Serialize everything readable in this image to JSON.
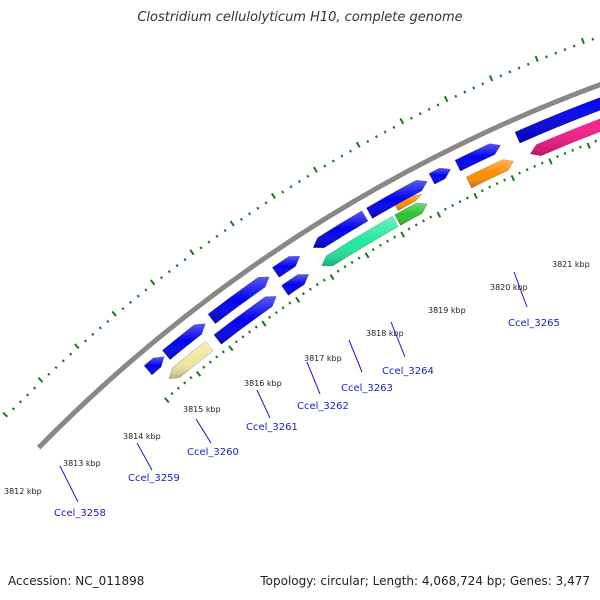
{
  "title": "Clostridium cellulolyticum H10, complete genome",
  "footer": {
    "accession": "Accession: NC_011898",
    "summary": "Topology: circular; Length: 4,068,724 bp; Genes: 3,477"
  },
  "colors": {
    "backbone": "#888888",
    "forward_gene": "#0000ee",
    "tick": "#1a7a1a",
    "label": "#1a1ac8"
  },
  "kbp_labels": [
    "3812 kbp",
    "3813 kbp",
    "3814 kbp",
    "3815 kbp",
    "3816 kbp",
    "3817 kbp",
    "3818 kbp",
    "3819 kbp",
    "3820 kbp",
    "3821 kbp"
  ],
  "highlighted_genes": [
    {
      "name": "Ccel_3258",
      "color": "#f0e6a0"
    },
    {
      "name": "Ccel_3259",
      "color": "#0000ee"
    },
    {
      "name": "Ccel_3260",
      "color": "#0000ee"
    },
    {
      "name": "Ccel_3261",
      "color": "#20e8a0"
    },
    {
      "name": "Ccel_3262",
      "color": "#30c030"
    },
    {
      "name": "Ccel_3263",
      "color": "#ff8c00"
    },
    {
      "name": "Ccel_3264",
      "color": "#ff8c00"
    },
    {
      "name": "Ccel_3265",
      "color": "#ff1a8c"
    }
  ]
}
